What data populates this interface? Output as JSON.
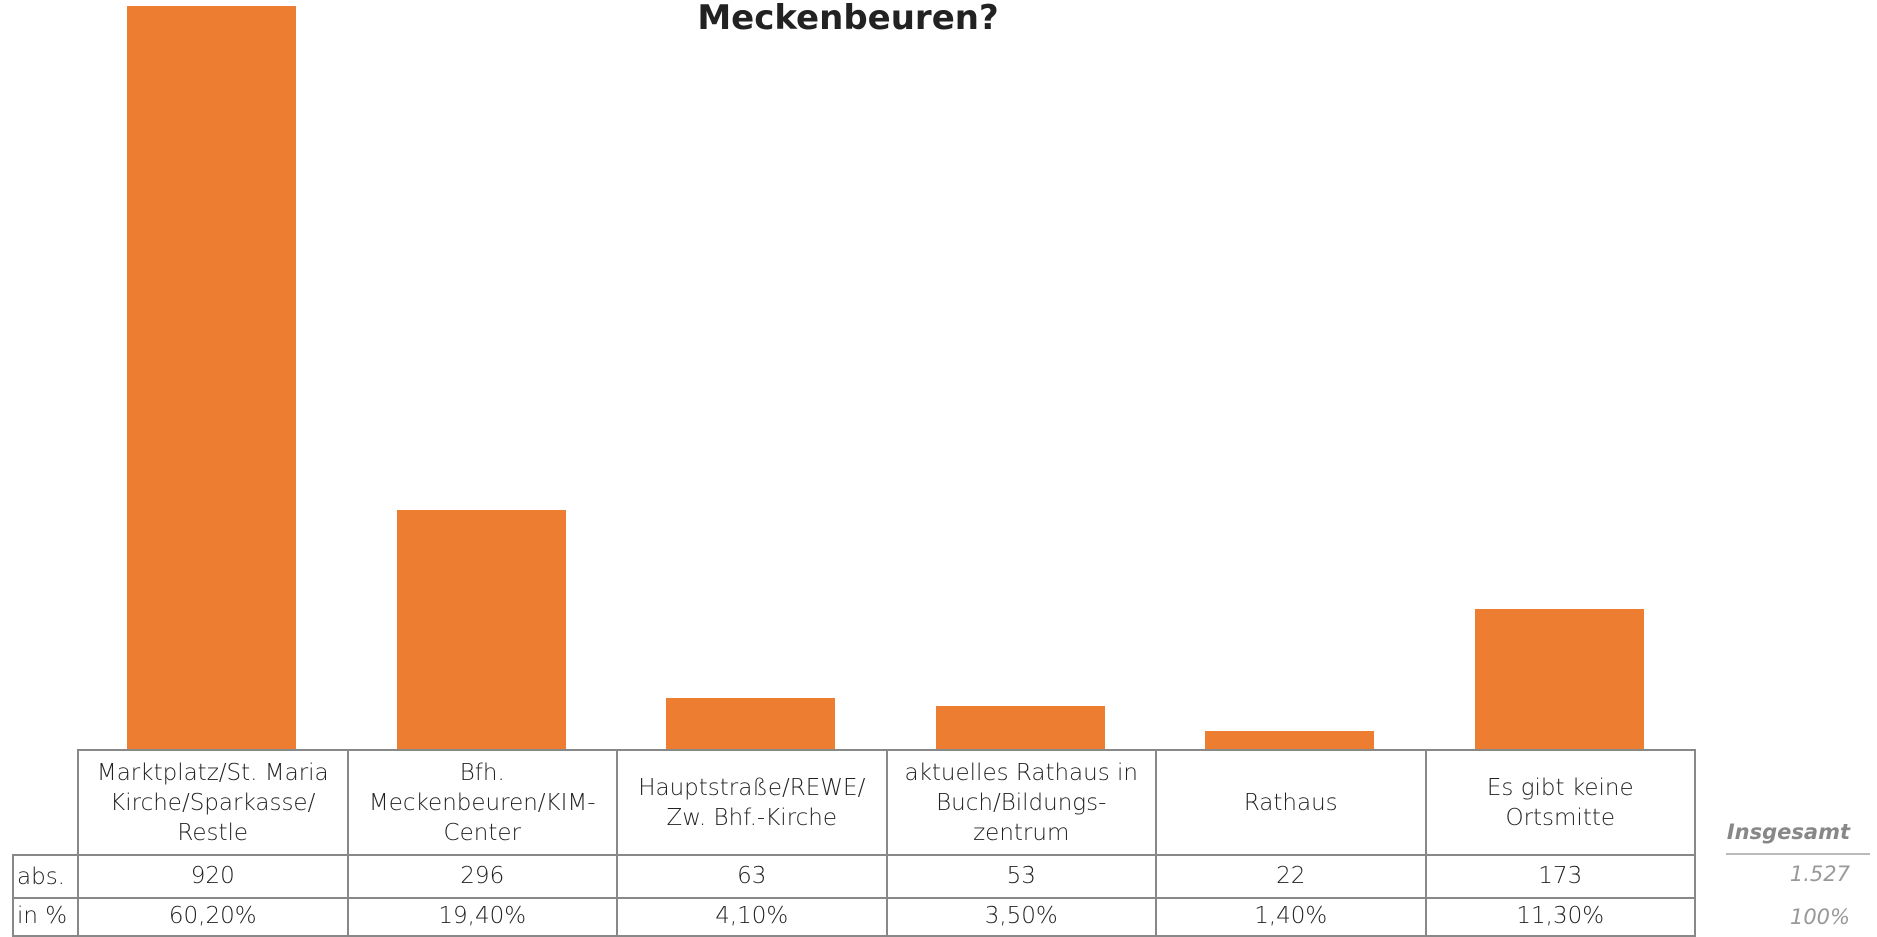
{
  "chart_data": {
    "type": "bar",
    "title": "Meckenbeuren?",
    "categories": [
      "Marktplatz/St. Maria Kirche/Sparkasse/ Restle",
      "Bfh. Meckenbeuren/KIM-Center",
      "Hauptstraße/REWE/ Zw. Bhf.-Kirche",
      "aktuelles Rathaus in Buch/Bildungs-zentrum",
      "Rathaus",
      "Es gibt keine Ortsmitte"
    ],
    "color": "#ed7d31",
    "series": [
      {
        "name": "abs.",
        "values": [
          920,
          296,
          63,
          53,
          22,
          173
        ]
      },
      {
        "name": "in %",
        "values": [
          60.2,
          19.4,
          4.1,
          3.5,
          1.4,
          11.3
        ],
        "value_labels": [
          "60,20%",
          "19,40%",
          "4,10%",
          "3,50%",
          "1,40%",
          "11,30%"
        ]
      }
    ],
    "total_title": "Insgesamt",
    "totals": [
      1527,
      100
    ],
    "total_labels": [
      "1.527",
      "100%"
    ]
  }
}
